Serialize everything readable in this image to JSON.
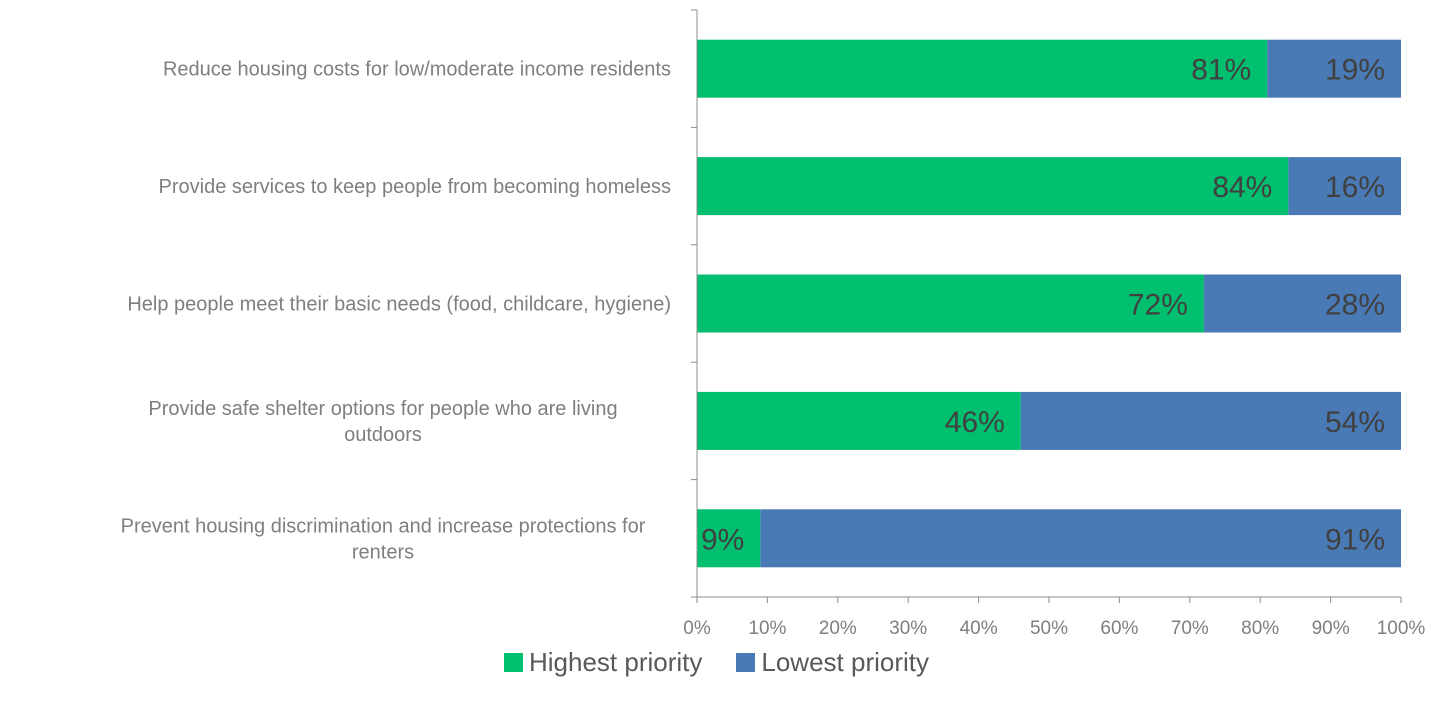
{
  "chart_data": {
    "type": "bar",
    "orientation": "horizontal",
    "stacked": true,
    "categories": [
      "Reduce housing costs for low/moderate income residents",
      "Provide services to keep people from becoming homeless",
      "Help people meet their basic needs (food, childcare, hygiene)",
      "Provide safe shelter options for people who are living outdoors",
      "Prevent housing discrimination and increase protections for renters"
    ],
    "series": [
      {
        "name": "Highest priority",
        "color": "#00bf6f",
        "values": [
          81,
          84,
          72,
          46,
          9
        ],
        "labels": [
          "81%",
          "84%",
          "72%",
          "46%",
          "9%"
        ]
      },
      {
        "name": "Lowest priority",
        "color": "#4a7ab5",
        "values": [
          19,
          16,
          28,
          54,
          91
        ],
        "labels": [
          "19%",
          "16%",
          "28%",
          "54%",
          "91%"
        ]
      }
    ],
    "xlim": [
      0,
      100
    ],
    "xticks": [
      "0%",
      "10%",
      "20%",
      "30%",
      "40%",
      "50%",
      "60%",
      "70%",
      "80%",
      "90%",
      "100%"
    ],
    "title": "",
    "xlabel": "",
    "ylabel": "",
    "grid": false,
    "legend_position": "bottom"
  }
}
